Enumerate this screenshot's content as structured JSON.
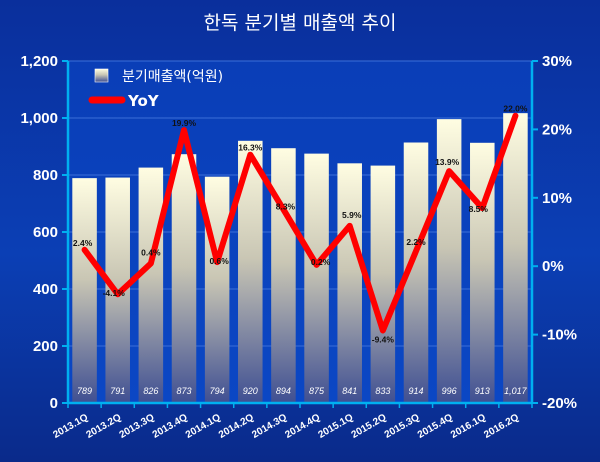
{
  "chart_data": {
    "type": "bar",
    "title": "한독 분기별 매출액 추이",
    "categories": [
      "2013.1Q",
      "2013.2Q",
      "2013.3Q",
      "2013.4Q",
      "2014.1Q",
      "2014.2Q",
      "2014.3Q",
      "2014.4Q",
      "2015.1Q",
      "2015.2Q",
      "2015.3Q",
      "2015.4Q",
      "2016.1Q",
      "2016.2Q"
    ],
    "series": [
      {
        "name": "분기매출액(억원)",
        "type": "bar",
        "axis": "left",
        "values": [
          789,
          791,
          826,
          873,
          794,
          920,
          894,
          875,
          841,
          833,
          914,
          996,
          913,
          1017
        ],
        "labels": [
          "789",
          "791",
          "826",
          "873",
          "794",
          "920",
          "894",
          "875",
          "841",
          "833",
          "914",
          "996",
          "913",
          "1,017"
        ]
      },
      {
        "name": "YoY",
        "type": "line",
        "axis": "right",
        "color": "#ff0000",
        "values": [
          2.4,
          -4.1,
          0.4,
          19.9,
          0.6,
          16.3,
          8.3,
          0.2,
          5.9,
          -9.4,
          2.2,
          13.9,
          8.5,
          22.0
        ],
        "labels": [
          "2.4%",
          "-4.1%",
          "0.4%",
          "19.9%",
          "0.6%",
          "16.3%",
          "8.3%",
          "0.2%",
          "5.9%",
          "-9.4%",
          "2.2%",
          "13.9%",
          "8.5%",
          "22.0%"
        ]
      }
    ],
    "y_left": {
      "ylim": [
        0,
        1200
      ],
      "ticks": [
        "0",
        "200",
        "400",
        "600",
        "800",
        "1,000",
        "1,200"
      ]
    },
    "y_right": {
      "ylim": [
        -20,
        30
      ],
      "ticks": [
        "-20%",
        "-10%",
        "0%",
        "10%",
        "20%",
        "30%"
      ]
    },
    "legend": "top-left",
    "grid": true
  },
  "colors": {
    "line": "#ff0000",
    "axis": "#00b0f0",
    "bar_top": "#fffde0",
    "bar_bottom": "#4a5a9a"
  }
}
